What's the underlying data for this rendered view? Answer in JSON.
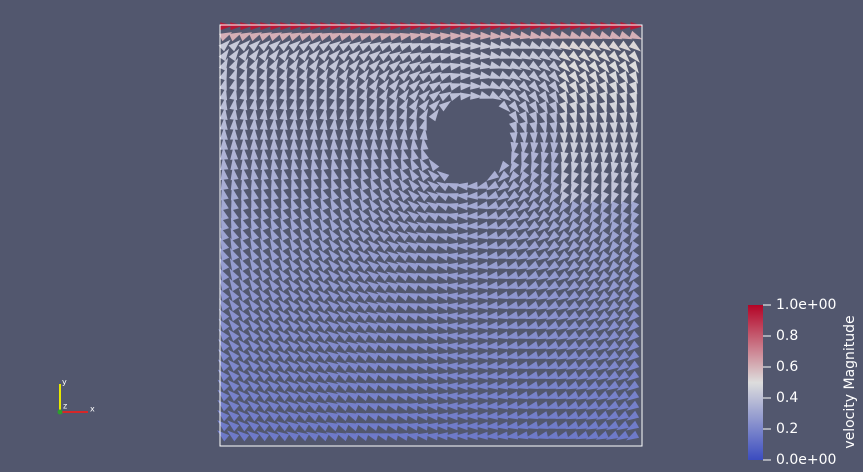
{
  "color_legend": {
    "title": "velocity Magnitude",
    "range": [
      0,
      1
    ],
    "ticks": [
      {
        "value": 1,
        "label": "1.0e+00"
      },
      0.8,
      0.6,
      0.4,
      0.2,
      {
        "value": 0,
        "label": "0.0e+00"
      }
    ]
  },
  "axes_triad": {
    "x": "x",
    "y": "y",
    "z": "z"
  }
}
